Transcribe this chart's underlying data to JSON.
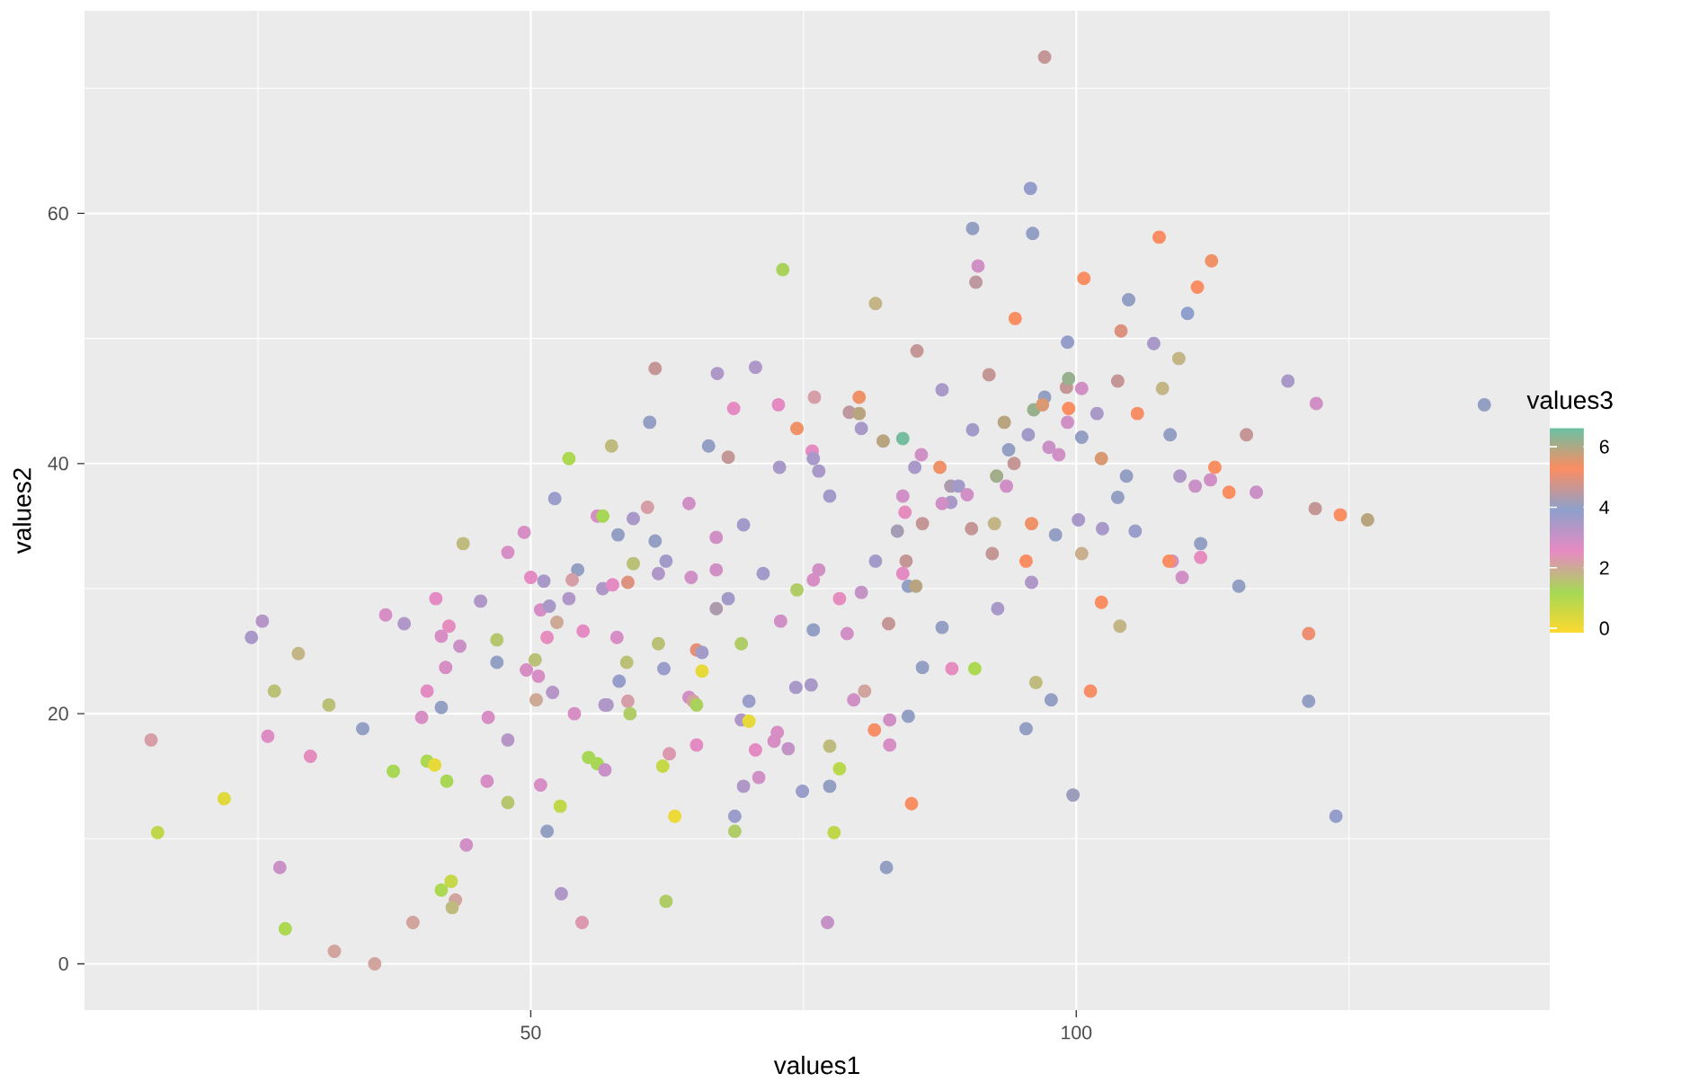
{
  "chart_data": {
    "type": "scatter",
    "xlabel": "values1",
    "ylabel": "values2",
    "clabel": "values3",
    "marker": "circle",
    "grid": true,
    "xlim": [
      9.1,
      143.4
    ],
    "ylim": [
      -3.7,
      76.2
    ],
    "xticks": [
      {
        "value": 25,
        "label": null
      },
      50,
      {
        "value": 75,
        "label": null
      },
      100,
      {
        "value": 125,
        "label": null
      }
    ],
    "yticks": [
      0,
      {
        "value": 10,
        "label": null
      },
      20,
      {
        "value": 30,
        "label": null
      },
      40,
      {
        "value": 50,
        "label": null
      },
      60,
      {
        "value": 70,
        "label": null
      }
    ],
    "clim": [
      -0.18,
      6.65
    ],
    "cticks": [
      0,
      2,
      4,
      6
    ],
    "x": [
      15.2,
      15.8,
      21.9,
      25.4,
      24.4,
      28.7,
      26.5,
      31.5,
      25.9,
      29.8,
      34.6,
      27.0,
      27.5,
      32.0,
      35.7,
      36.7,
      38.4,
      43.8,
      41.3,
      42.5,
      41.8,
      43.5,
      42.2,
      40.5,
      41.8,
      40.0,
      46.9,
      46.9,
      45.4,
      47.9,
      49.4,
      46.1,
      47.9,
      40.5,
      41.2,
      37.4,
      42.3,
      46.0,
      47.9,
      44.1,
      42.7,
      41.8,
      43.1,
      42.8,
      39.2,
      50.9,
      52.7,
      51.5,
      52.8,
      54.7,
      55.3,
      56.1,
      54.0,
      52.0,
      50.5,
      50.7,
      49.6,
      50.4,
      51.5,
      52.4,
      50.9,
      50.0,
      51.2,
      54.3,
      53.8,
      56.6,
      53.5,
      54.8,
      56.1,
      56.6,
      56.8,
      73.1,
      81.6,
      90.8,
      94.4,
      85.4,
      92.0,
      87.7,
      61.4,
      67.1,
      70.6,
      72.7,
      68.6,
      76.0,
      80.1,
      79.2,
      80.1,
      74.4,
      80.3,
      82.3,
      84.1,
      60.9,
      57.4,
      53.5,
      66.3,
      68.1,
      75.8,
      75.9,
      72.8,
      76.4,
      85.8,
      85.2,
      87.5,
      90.5,
      93.4,
      96.1,
      95.6,
      93.8,
      94.3,
      92.7,
      93.6,
      88.5,
      89.2,
      90.0,
      88.5,
      87.7,
      84.1,
      84.3,
      77.4,
      52.2,
      59.4,
      60.7,
      64.5,
      58.0,
      61.4,
      67.0,
      69.5,
      59.4,
      62.4,
      61.7,
      64.7,
      67.0,
      71.3,
      57.5,
      58.9,
      74.4,
      75.9,
      76.4,
      78.3,
      80.3,
      81.6,
      84.4,
      84.1,
      84.6,
      85.3,
      85.9,
      83.6,
      90.4,
      92.3,
      95.4,
      95.9,
      95.9,
      92.8,
      87.7,
      82.8,
      79.0,
      75.9,
      72.9,
      67.0,
      68.1,
      69.3,
      65.2,
      65.7,
      61.7,
      57.9,
      51.7,
      58.8,
      62.2,
      65.7,
      58.1,
      58.9,
      57.0,
      59.1,
      64.5,
      64.9,
      65.2,
      70.0,
      74.3,
      75.7,
      79.6,
      80.6,
      69.3,
      70.0,
      72.6,
      72.3,
      73.6,
      70.6,
      65.2,
      62.7,
      62.1,
      56.8,
      63.2,
      68.7,
      68.7,
      69.5,
      70.9,
      74.9,
      77.4,
      77.4,
      78.3,
      77.8,
      81.5,
      82.9,
      84.6,
      82.9,
      84.9,
      82.6,
      77.2,
      62.4,
      85.9,
      88.6,
      90.7,
      96.3,
      95.4,
      97.1,
      95.8,
      90.5,
      96.0,
      91.0,
      107.6,
      112.4,
      100.7,
      111.1,
      104.8,
      110.2,
      104.1,
      99.2,
      107.1,
      109.4,
      99.1,
      99.3,
      100.5,
      103.8,
      107.9,
      119.4,
      122.0,
      137.4,
      97.1,
      96.9,
      99.3,
      101.9,
      105.6,
      99.2,
      100.5,
      108.6,
      115.6,
      97.5,
      98.4,
      102.3,
      112.7,
      109.5,
      110.9,
      112.3,
      114.0,
      116.5,
      104.6,
      103.8,
      121.9,
      124.2,
      126.7,
      100.2,
      102.4,
      105.4,
      98.1,
      92.5,
      102.3,
      104.0,
      121.3,
      97.7,
      101.3,
      121.3,
      99.7,
      123.8,
      114.9,
      109.7,
      111.4,
      111.4,
      108.8,
      108.5,
      100.5
    ],
    "values": [
      17.9,
      10.5,
      13.2,
      27.4,
      26.1,
      24.8,
      21.8,
      20.7,
      18.2,
      16.6,
      18.8,
      7.7,
      2.8,
      1.0,
      0.0,
      27.9,
      27.2,
      33.6,
      29.2,
      27.0,
      26.2,
      25.4,
      23.7,
      21.8,
      20.5,
      19.7,
      25.9,
      24.1,
      29.0,
      32.9,
      34.5,
      19.7,
      17.9,
      16.2,
      15.9,
      15.4,
      14.6,
      14.6,
      12.9,
      9.5,
      6.6,
      5.9,
      5.1,
      4.5,
      3.3,
      14.3,
      12.6,
      10.6,
      5.6,
      3.3,
      16.5,
      16.0,
      20.0,
      21.7,
      21.1,
      23.0,
      23.5,
      24.3,
      26.1,
      27.3,
      28.3,
      30.9,
      30.6,
      31.5,
      30.7,
      30.0,
      29.2,
      26.6,
      35.8,
      35.8,
      20.7,
      55.5,
      52.8,
      54.5,
      51.6,
      49.0,
      47.1,
      45.9,
      47.6,
      47.2,
      47.7,
      44.7,
      44.4,
      45.3,
      45.3,
      44.1,
      44.0,
      42.8,
      42.8,
      41.8,
      42.0,
      43.3,
      41.4,
      40.4,
      41.4,
      40.5,
      41.0,
      40.4,
      39.7,
      39.4,
      40.7,
      39.7,
      39.7,
      42.7,
      43.3,
      44.3,
      42.3,
      41.1,
      40.0,
      39.0,
      38.2,
      38.2,
      38.2,
      37.5,
      36.9,
      36.8,
      37.4,
      36.1,
      37.4,
      37.2,
      35.6,
      36.5,
      36.8,
      34.3,
      33.8,
      34.1,
      35.1,
      32.0,
      32.2,
      31.2,
      30.9,
      31.5,
      31.2,
      30.3,
      30.5,
      29.9,
      30.7,
      31.5,
      29.2,
      29.7,
      32.2,
      32.2,
      31.2,
      30.2,
      30.2,
      35.2,
      34.6,
      34.8,
      32.8,
      32.2,
      35.2,
      30.5,
      28.4,
      26.9,
      27.2,
      26.4,
      26.7,
      27.4,
      28.4,
      29.2,
      25.6,
      25.1,
      24.9,
      25.6,
      26.1,
      28.6,
      24.1,
      23.6,
      23.4,
      22.6,
      21.0,
      20.7,
      20.0,
      21.3,
      21.0,
      20.7,
      21.0,
      22.1,
      22.3,
      21.1,
      21.8,
      19.5,
      19.4,
      18.5,
      17.8,
      17.2,
      17.1,
      17.5,
      16.8,
      15.8,
      15.5,
      11.8,
      11.8,
      10.6,
      14.2,
      14.9,
      13.8,
      14.2,
      17.4,
      15.6,
      10.5,
      18.7,
      19.5,
      19.8,
      17.5,
      12.8,
      7.7,
      3.3,
      5.0,
      23.7,
      23.6,
      23.6,
      22.5,
      18.8,
      72.5,
      62.0,
      58.8,
      58.4,
      55.8,
      58.1,
      56.2,
      54.8,
      54.1,
      53.1,
      52.0,
      50.6,
      49.7,
      49.6,
      48.4,
      46.1,
      46.8,
      46.0,
      46.6,
      46.0,
      46.6,
      44.8,
      44.7,
      45.3,
      44.7,
      44.4,
      44.0,
      44.0,
      43.3,
      42.1,
      42.3,
      42.3,
      41.3,
      40.7,
      40.4,
      39.7,
      39.0,
      38.2,
      38.7,
      37.7,
      37.7,
      39.0,
      37.3,
      36.4,
      35.9,
      35.5,
      35.5,
      34.8,
      34.6,
      34.3,
      35.2,
      28.9,
      27.0,
      26.4,
      21.1,
      21.8,
      21.0,
      13.5,
      11.8,
      30.2,
      30.9,
      32.5,
      33.6,
      32.2,
      32.2,
      32.8
    ],
    "cvalues": [
      2.2,
      0.8,
      0.3,
      3.3,
      3.5,
      1.8,
      1.6,
      1.6,
      2.7,
      2.5,
      4.0,
      3.0,
      1.1,
      2.1,
      2.1,
      2.8,
      3.4,
      1.7,
      2.6,
      2.5,
      2.8,
      3.0,
      2.8,
      2.6,
      4.0,
      2.8,
      1.5,
      4.0,
      3.4,
      2.8,
      2.8,
      2.8,
      3.3,
      1.1,
      0.2,
      1.2,
      1.2,
      2.8,
      1.5,
      2.9,
      0.7,
      1.1,
      2.1,
      1.7,
      2.1,
      2.8,
      0.8,
      4.0,
      3.4,
      2.3,
      1.2,
      1.2,
      2.8,
      3.3,
      2.0,
      2.8,
      2.8,
      1.6,
      2.5,
      2.0,
      2.8,
      2.6,
      3.5,
      4.0,
      2.2,
      3.4,
      3.4,
      2.6,
      2.8,
      1.2,
      3.4,
      1.3,
      1.8,
      4.5,
      5.3,
      4.6,
      4.6,
      3.5,
      4.6,
      3.4,
      3.4,
      2.6,
      2.6,
      2.2,
      5.4,
      4.5,
      5.9,
      5.4,
      3.5,
      5.9,
      6.5,
      4.0,
      1.7,
      1.1,
      4.0,
      4.6,
      2.6,
      3.5,
      3.5,
      3.5,
      2.9,
      3.5,
      5.4,
      3.6,
      5.9,
      6.2,
      3.6,
      4.0,
      4.6,
      6.1,
      2.9,
      4.3,
      3.6,
      2.9,
      3.5,
      2.9,
      2.9,
      2.5,
      3.6,
      3.7,
      3.5,
      2.2,
      2.9,
      4.0,
      4.0,
      2.9,
      3.6,
      1.6,
      3.6,
      3.4,
      2.9,
      2.9,
      3.6,
      2.6,
      4.9,
      1.4,
      2.8,
      2.9,
      2.5,
      3.1,
      3.6,
      4.6,
      2.6,
      4.0,
      5.9,
      4.6,
      4.2,
      4.6,
      4.6,
      5.3,
      5.4,
      3.4,
      3.5,
      4.0,
      4.6,
      2.9,
      4.0,
      2.9,
      4.3,
      3.6,
      1.4,
      5.0,
      3.6,
      1.6,
      2.8,
      3.5,
      1.6,
      3.7,
      0.2,
      3.8,
      2.2,
      3.4,
      1.4,
      2.9,
      2.1,
      1.3,
      3.7,
      3.5,
      3.5,
      2.9,
      2.1,
      3.4,
      0.2,
      2.8,
      2.8,
      3.1,
      2.6,
      2.6,
      2.3,
      0.7,
      3.0,
      0.1,
      3.7,
      1.4,
      3.4,
      2.9,
      3.7,
      4.0,
      1.7,
      0.9,
      0.8,
      5.2,
      2.9,
      4.0,
      2.8,
      5.3,
      4.0,
      3.1,
      1.4,
      4.0,
      2.5,
      1.1,
      1.7,
      4.0,
      4.6,
      3.8,
      4.0,
      4.0,
      2.9,
      5.3,
      5.4,
      5.3,
      5.3,
      4.0,
      3.9,
      4.9,
      3.8,
      3.5,
      1.8,
      4.6,
      6.2,
      2.9,
      4.6,
      1.8,
      3.5,
      2.9,
      4.0,
      4.0,
      5.6,
      5.3,
      3.5,
      5.2,
      2.9,
      4.0,
      4.0,
      4.6,
      3.0,
      2.9,
      5.6,
      5.3,
      3.4,
      3.0,
      2.9,
      5.3,
      3.0,
      4.0,
      4.0,
      4.6,
      5.3,
      5.9,
      3.5,
      3.5,
      3.7,
      4.0,
      1.8,
      5.3,
      1.8,
      5.1,
      4.0,
      5.2,
      4.0,
      4.1,
      3.8,
      4.0,
      2.9,
      2.5,
      4.0,
      2.9,
      5.3,
      1.9
    ]
  }
}
